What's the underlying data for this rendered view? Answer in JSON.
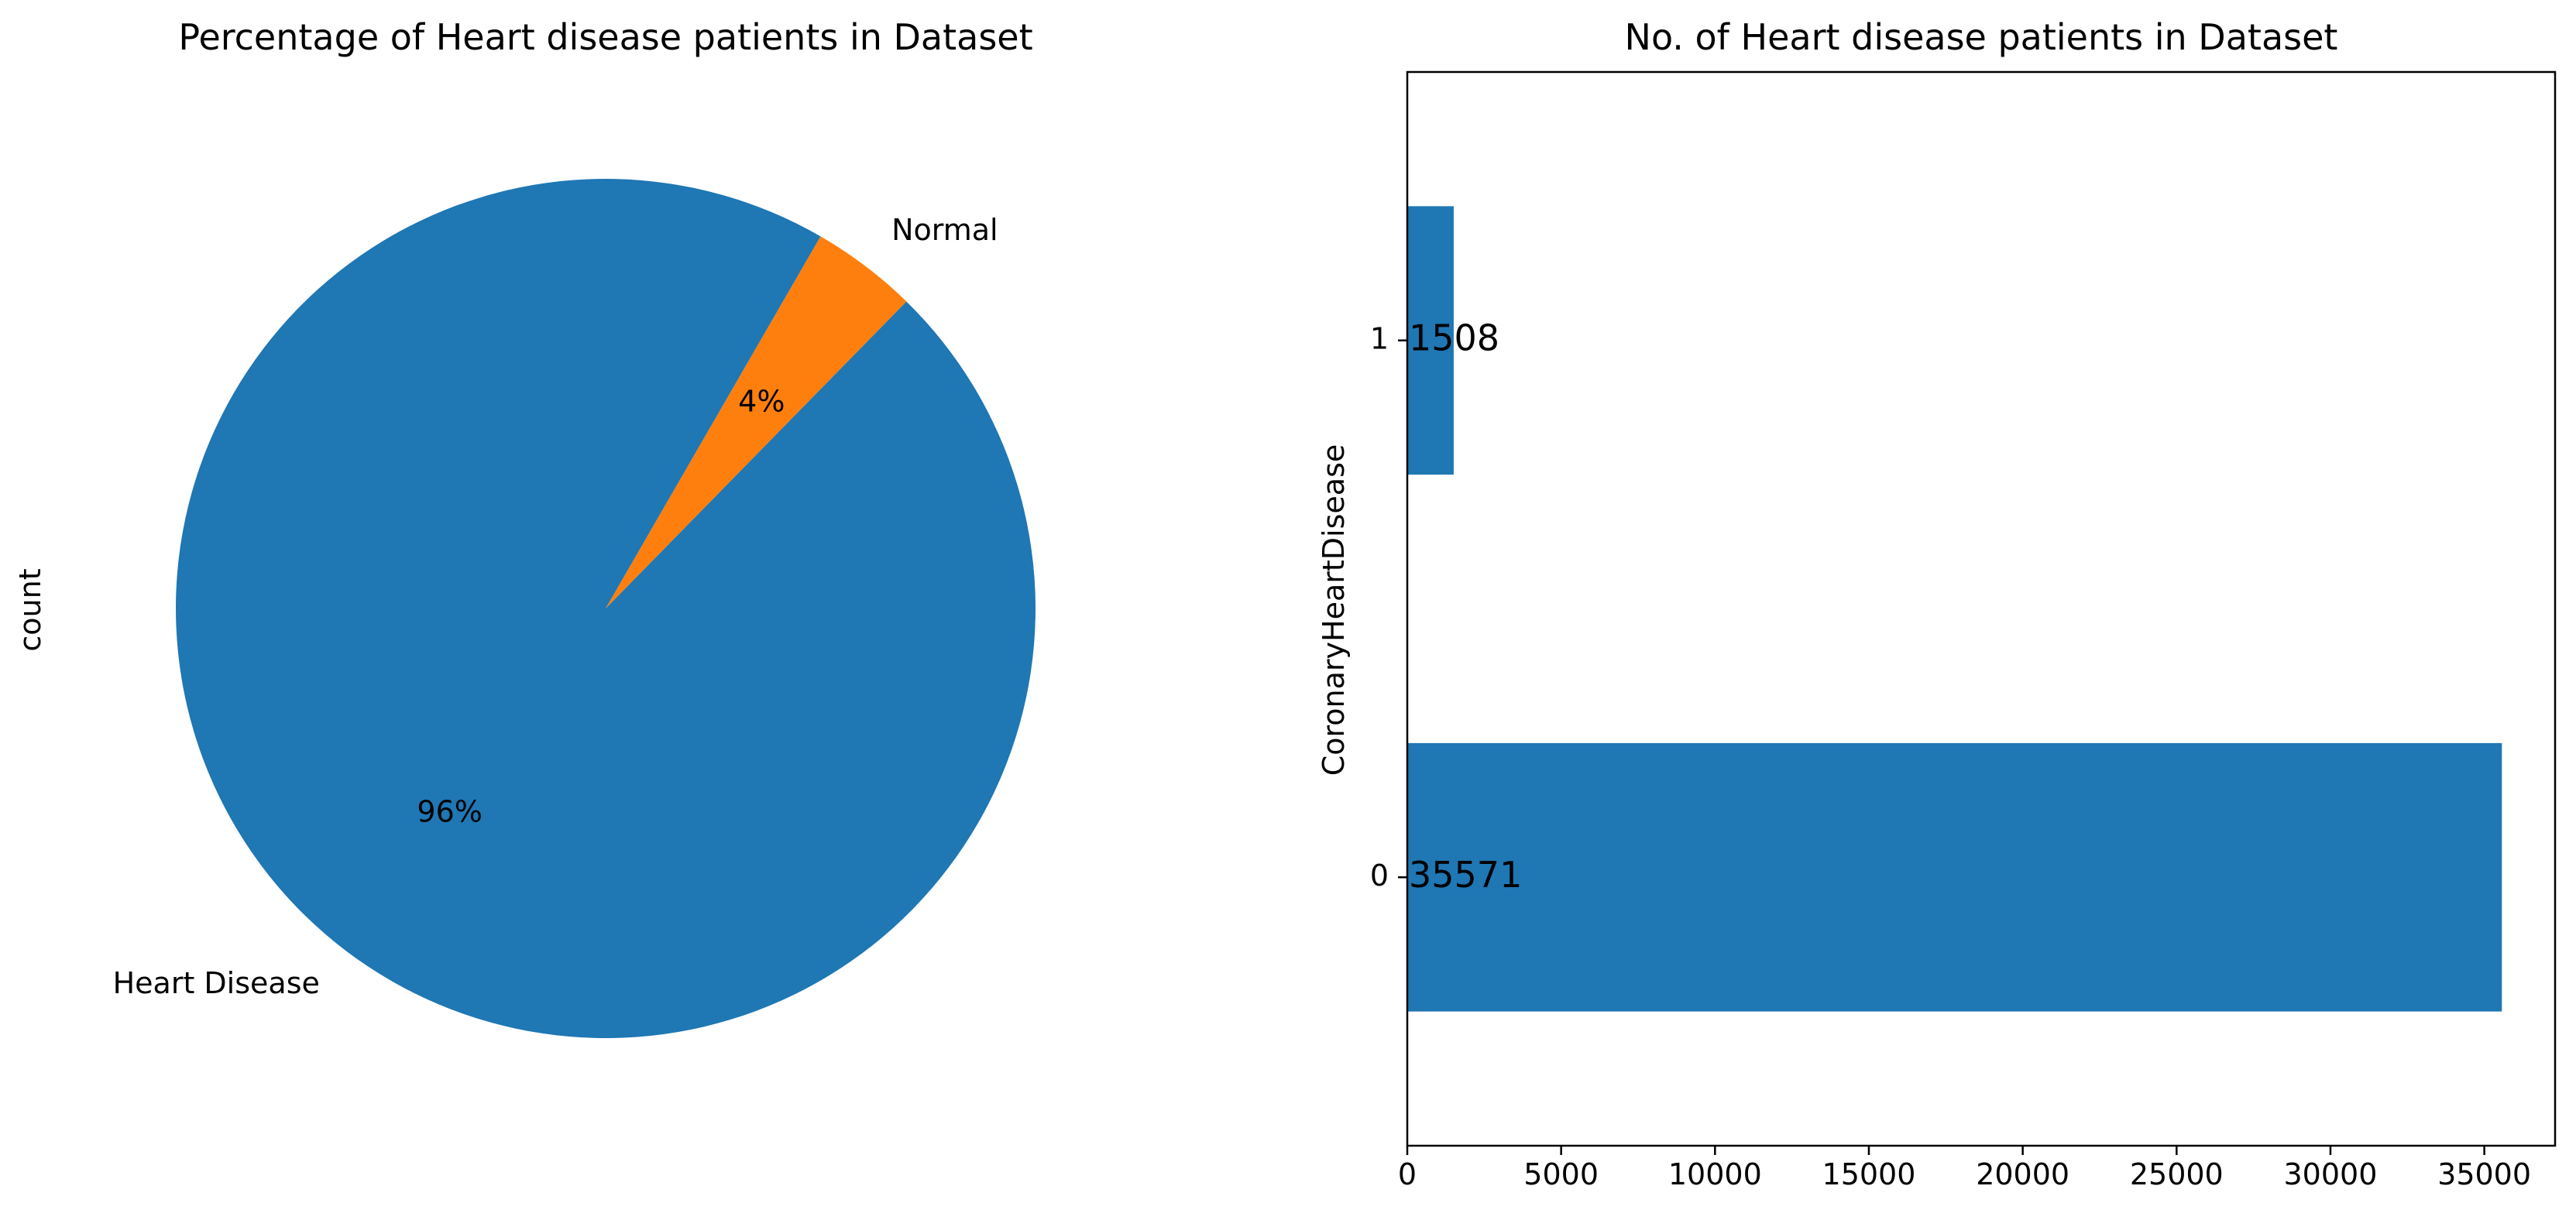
{
  "chart_data": [
    {
      "type": "pie",
      "title": "Percentage of Heart disease patients in Dataset",
      "ylabel": "count",
      "labels": [
        "Heart Disease",
        "Normal"
      ],
      "values": [
        96,
        4
      ],
      "pct_labels": [
        "96%",
        "4%"
      ],
      "colors": [
        "#1f77b4",
        "#ff7f0e"
      ],
      "start_angle_deg": 60,
      "direction": "counterclockwise"
    },
    {
      "type": "bar",
      "orientation": "horizontal",
      "title": "No. of Heart disease patients in Dataset",
      "xlabel": "",
      "ylabel": "CoronaryHeartDisease",
      "categories": [
        "0",
        "1"
      ],
      "values": [
        35571,
        1508
      ],
      "data_labels": [
        "35571",
        "1508"
      ],
      "xlim": [
        0,
        37300
      ],
      "xticks": [
        0,
        5000,
        10000,
        15000,
        20000,
        25000,
        30000,
        35000
      ],
      "xtick_labels": [
        "0",
        "5000",
        "10000",
        "15000",
        "20000",
        "25000",
        "30000",
        "35000"
      ],
      "color": "#1f77b4"
    }
  ]
}
